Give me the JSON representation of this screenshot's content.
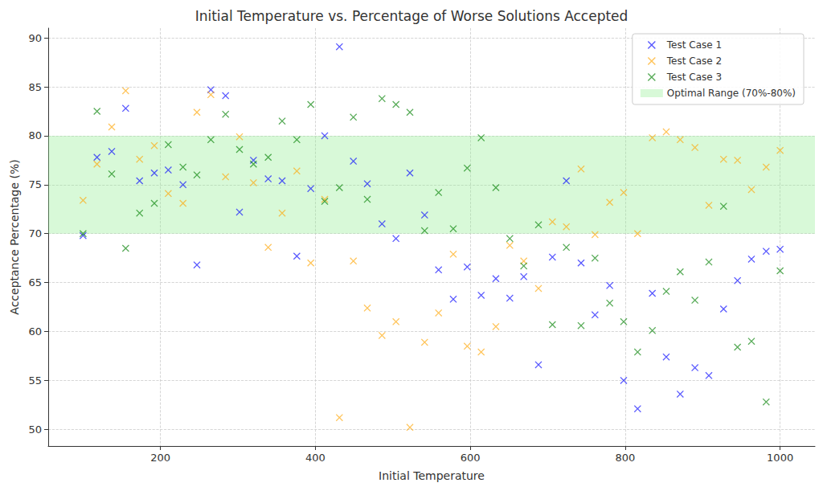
{
  "chart_data": {
    "type": "scatter",
    "title": "Initial Temperature vs. Percentage of Worse Solutions Accepted",
    "x_label": "Initial Temperature",
    "y_label": "Acceptance Percentage (%)",
    "x": [
      100,
      118,
      137,
      155,
      173,
      192,
      210,
      229,
      247,
      265,
      284,
      302,
      320,
      339,
      357,
      376,
      394,
      412,
      431,
      449,
      467,
      486,
      504,
      522,
      541,
      559,
      578,
      596,
      614,
      633,
      651,
      669,
      688,
      706,
      724,
      743,
      761,
      780,
      798,
      816,
      835,
      853,
      871,
      890,
      908,
      927,
      945,
      963,
      982,
      1000
    ],
    "series": [
      {
        "name": "Test Case 1",
        "color": "#0000ff",
        "marker": "x",
        "values": [
          69.8,
          77.8,
          78.4,
          82.8,
          75.4,
          76.2,
          76.5,
          75.0,
          66.8,
          84.7,
          84.1,
          72.2,
          77.5,
          75.6,
          75.4,
          67.7,
          74.6,
          80.0,
          89.1,
          77.4,
          75.1,
          71.0,
          69.5,
          76.2,
          71.9,
          66.3,
          63.3,
          66.6,
          63.7,
          65.4,
          63.4,
          65.6,
          56.6,
          67.6,
          75.4,
          67.0,
          61.7,
          64.7,
          55.0,
          52.1,
          63.9,
          57.4,
          53.6,
          56.3,
          55.5,
          62.3,
          65.2,
          67.4,
          68.2,
          68.4
        ]
      },
      {
        "name": "Test Case 2",
        "color": "#ffa500",
        "marker": "x",
        "values": [
          73.4,
          77.1,
          80.9,
          84.6,
          77.6,
          79.0,
          74.1,
          73.1,
          82.4,
          84.2,
          75.8,
          79.9,
          75.2,
          68.6,
          72.1,
          76.4,
          67.0,
          73.5,
          51.2,
          67.2,
          62.4,
          59.6,
          61.0,
          50.2,
          58.9,
          61.9,
          67.9,
          58.5,
          57.9,
          60.5,
          68.8,
          67.2,
          64.4,
          71.2,
          70.7,
          76.6,
          69.9,
          73.2,
          74.2,
          70.0,
          79.8,
          80.4,
          79.6,
          78.8,
          72.9,
          77.6,
          77.5,
          74.5,
          76.8,
          78.5
        ]
      },
      {
        "name": "Test Case 3",
        "color": "#008000",
        "marker": "x",
        "values": [
          70.0,
          82.5,
          76.1,
          68.5,
          72.1,
          73.1,
          79.1,
          76.8,
          76.0,
          79.6,
          82.2,
          78.6,
          77.1,
          77.8,
          81.5,
          79.6,
          83.2,
          73.3,
          74.7,
          81.9,
          73.5,
          83.8,
          83.2,
          82.4,
          70.3,
          74.2,
          70.5,
          76.7,
          79.8,
          74.7,
          69.5,
          66.7,
          70.9,
          60.7,
          68.6,
          60.6,
          67.5,
          62.9,
          61.0,
          57.9,
          60.1,
          64.1,
          66.1,
          63.2,
          67.1,
          72.8,
          58.4,
          59.0,
          52.8,
          66.2
        ]
      }
    ],
    "optimal_range": {
      "label": "Optimal Range (70%-80%)",
      "from": 70,
      "to": 80,
      "color": "#90ee90"
    },
    "xlim": [
      55,
      1045
    ],
    "xticks": [
      200,
      400,
      600,
      800,
      1000
    ],
    "ylim": [
      48.3,
      91
    ],
    "yticks": [
      50,
      55,
      60,
      65,
      70,
      75,
      80,
      85,
      90
    ],
    "grid": true,
    "legend": "upper right"
  }
}
